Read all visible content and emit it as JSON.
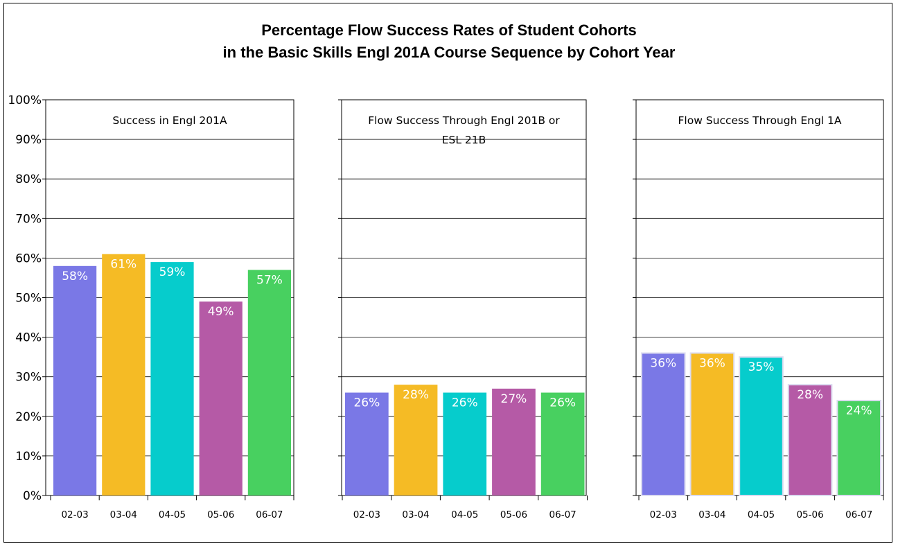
{
  "title": {
    "line1": "Percentage Flow Success Rates of Student Cohorts",
    "line2": "in the Basic Skills Engl 201A Course Sequence by Cohort Year"
  },
  "colors": {
    "02-03": "#7a78e6",
    "03-04": "#f5bb25",
    "04-05": "#06cccc",
    "05-06": "#b55aa6",
    "06-07": "#48d060"
  },
  "chart_data": [
    {
      "type": "bar",
      "title": "Success in Engl 201A",
      "categories": [
        "02-03",
        "03-04",
        "04-05",
        "05-06",
        "06-07"
      ],
      "values": [
        58,
        61,
        59,
        49,
        57
      ],
      "labels": [
        "58%",
        "61%",
        "59%",
        "49%",
        "57%"
      ],
      "ylim": [
        0,
        100
      ],
      "yticks": [
        "0%",
        "10%",
        "20%",
        "30%",
        "40%",
        "50%",
        "60%",
        "70%",
        "80%",
        "90%",
        "100%"
      ],
      "grid": true
    },
    {
      "type": "bar",
      "title": "Flow Success Through Engl 201B or ESL 21B",
      "title_lines": [
        "Flow Success Through Engl 201B or",
        "ESL 21B"
      ],
      "categories": [
        "02-03",
        "03-04",
        "04-05",
        "05-06",
        "06-07"
      ],
      "values": [
        26,
        28,
        26,
        27,
        26
      ],
      "labels": [
        "26%",
        "28%",
        "26%",
        "27%",
        "26%"
      ],
      "ylim": [
        0,
        100
      ],
      "grid": true
    },
    {
      "type": "bar",
      "title": "Flow Success Through Engl 1A",
      "categories": [
        "02-03",
        "03-04",
        "04-05",
        "05-06",
        "06-07"
      ],
      "values": [
        36,
        36,
        35,
        28,
        24
      ],
      "labels": [
        "36%",
        "36%",
        "35%",
        "28%",
        "24%"
      ],
      "ylim": [
        0,
        100
      ],
      "grid": true
    }
  ]
}
